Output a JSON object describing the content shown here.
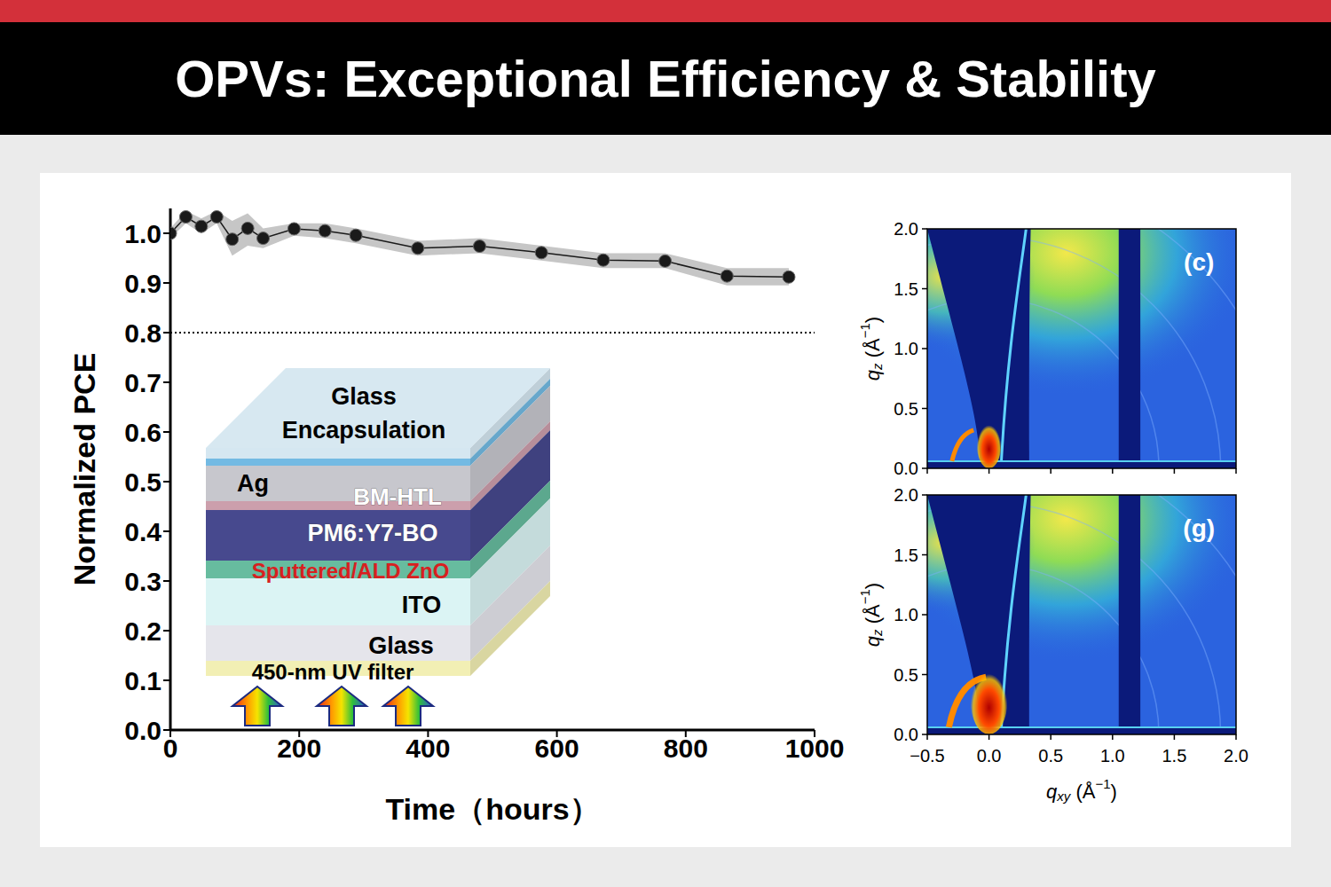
{
  "header": {
    "title": "OPVs: Exceptional Efficiency & Stability"
  },
  "chart_data": [
    {
      "type": "line",
      "x_label": "Time（hours）",
      "y_label": "Normalized PCE",
      "x": [
        0,
        24,
        48,
        72,
        96,
        120,
        144,
        192,
        240,
        288,
        384,
        480,
        576,
        672,
        768,
        864,
        960
      ],
      "values": [
        1.0,
        1.033,
        1.014,
        1.033,
        0.988,
        1.01,
        0.99,
        1.009,
        1.005,
        0.996,
        0.97,
        0.974,
        0.961,
        0.946,
        0.944,
        0.914,
        0.912
      ],
      "band": {
        "lower": [
          0.99,
          1.02,
          1.0,
          1.02,
          0.955,
          0.975,
          0.97,
          0.995,
          0.99,
          0.98,
          0.955,
          0.96,
          0.945,
          0.93,
          0.93,
          0.895,
          0.895
        ],
        "upper": [
          1.01,
          1.045,
          1.03,
          1.045,
          1.025,
          1.04,
          1.01,
          1.02,
          1.02,
          1.01,
          0.985,
          0.99,
          0.975,
          0.96,
          0.96,
          0.93,
          0.93
        ],
        "color": "#c6c6c6"
      },
      "color": "#1a1a1a",
      "marker": "circle",
      "line_style": "solid",
      "hline": 0.8,
      "grid": false,
      "xlim": [
        0,
        1000
      ],
      "xticks": [
        0,
        200,
        400,
        600,
        800,
        1000
      ],
      "ylim": [
        0,
        1.05
      ],
      "yticks": [
        {
          "value": 0,
          "label": "0.0"
        },
        0.1,
        0.2,
        0.3,
        0.4,
        0.5,
        0.6,
        0.7,
        0.8,
        0.9,
        {
          "value": 1,
          "label": "1.0"
        }
      ]
    },
    {
      "type": "image",
      "panel": "(c)",
      "tick_labels": "y",
      "xlim": [
        -0.5,
        2.0
      ],
      "ylim": [
        0,
        2.0
      ],
      "xticks": [
        {
          "value": -0.5,
          "label": "−0.5"
        },
        {
          "value": 0,
          "label": "0.0"
        },
        0.5,
        {
          "value": 1,
          "label": "1.0"
        },
        1.5,
        {
          "value": 2,
          "label": "2.0"
        }
      ],
      "yticks": [
        {
          "value": 0,
          "label": "0.0"
        },
        0.5,
        {
          "value": 1,
          "label": "1.0"
        },
        1.5,
        {
          "value": 2,
          "label": "2.0"
        }
      ],
      "y_label": {
        "base": "q",
        "sub": "z",
        "unit": " (Å",
        "sup": "−1",
        "end": ")"
      }
    },
    {
      "type": "image",
      "panel": "(g)",
      "tick_labels": true,
      "xlim": [
        -0.5,
        2.0
      ],
      "ylim": [
        0,
        2.0
      ],
      "xticks": [
        {
          "value": -0.5,
          "label": "−0.5"
        },
        {
          "value": 0,
          "label": "0.0"
        },
        0.5,
        {
          "value": 1,
          "label": "1.0"
        },
        1.5,
        {
          "value": 2,
          "label": "2.0"
        }
      ],
      "yticks": [
        {
          "value": 0,
          "label": "0.0"
        },
        0.5,
        {
          "value": 1,
          "label": "1.0"
        },
        1.5,
        {
          "value": 2,
          "label": "2.0"
        }
      ],
      "x_label": {
        "base": "q",
        "sub": "xy",
        "unit": " (Å",
        "sup": "−1",
        "end": ")"
      },
      "y_label": {
        "base": "q",
        "sub": "z",
        "unit": " (Å",
        "sup": "−1",
        "end": ")"
      }
    }
  ],
  "inset": {
    "layers": [
      {
        "label": "Glass",
        "color": "#d3e6f0"
      },
      {
        "label": "Encapsulation",
        "color": "#6bb6e2"
      },
      {
        "label": "Ag",
        "color": "#c4c4ca"
      },
      {
        "label": "BM-HTL",
        "color": "#c99aa8"
      },
      {
        "label": "PM6:Y7-BO",
        "color": "#3d3f88"
      },
      {
        "label": "Sputtered/ALD ZnO",
        "color": "#5fb89a"
      },
      {
        "label": "ITO",
        "color": "#d9f3f3"
      },
      {
        "label": "Glass",
        "color": "#e4e4ea"
      },
      {
        "label": "450-nm UV filter",
        "color": "#f1eeb0"
      }
    ]
  }
}
